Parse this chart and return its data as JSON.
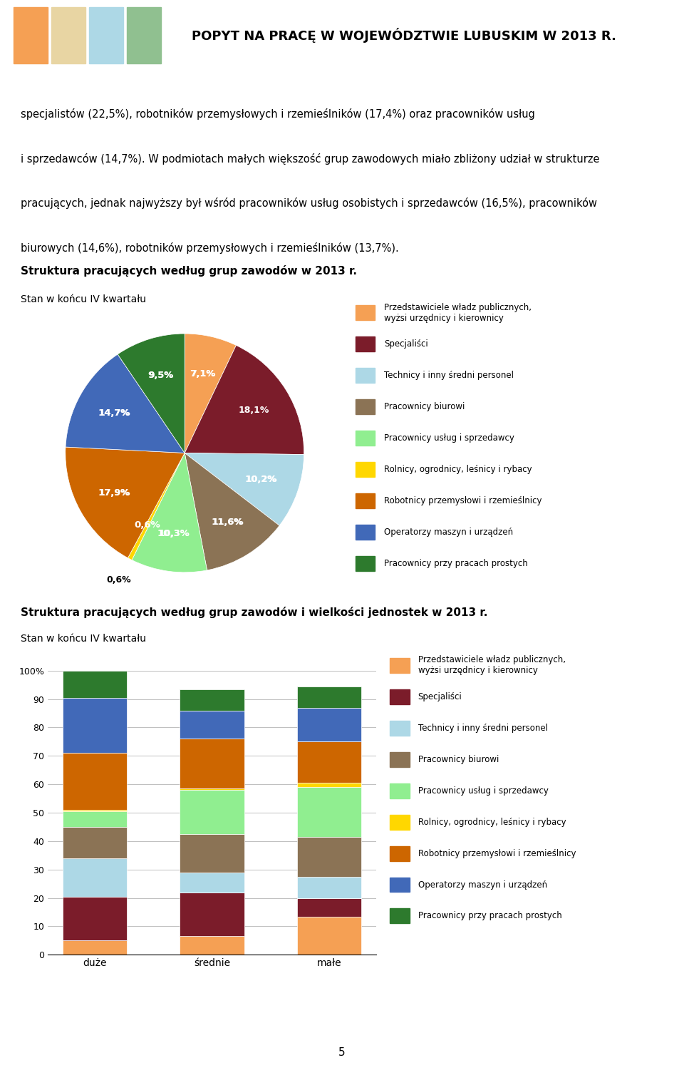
{
  "page_title": "POPYT NA PRACĘ W WOJEWÓDZTWIE LUBUSKIM W 2013 R.",
  "intro_text": "specjalistów (22,5%), robotników przemysłowych i rzemieślników (17,4%) oraz pracowników usług\ni sprzedawców (14,7%). W podmiotach małych większość grup zawodowych miało zbliżony udział w strukturze\npracujących, jednak najwyższy był wśród pracowników usług osobistych i sprzedawców (16,5%), pracowników\nbiurowych (14,6%), robotników przemysłowych i rzemieślników (13,7%).",
  "pie_title": "Struktura pracujących według grup zawodów w 2013 r.",
  "pie_subtitle": "Stan w końcu IV kwartału",
  "bar_title": "Struktura pracujących według grup zawodów i wielkości jednostek w 2013 r.",
  "bar_subtitle": "Stan w końcu IV kwartału",
  "categories": [
    "Przedstawiciele władz publicznych,\nwyżsi urzędnicy i kierownicy",
    "Specjaliści",
    "Technicy i inny średni personel",
    "Pracownicy biurowi",
    "Pracownicy usług i sprzedawcy",
    "Rolnicy, ogrodnicy, leśnicy i rybacy",
    "Robotnicy przemysłowi i rzemieślnicy",
    "Operatorzy maszyn i urządzeń",
    "Pracownicy przy pracach prostych"
  ],
  "colors": [
    "#F5A054",
    "#7B1C2A",
    "#ADD8E6",
    "#8B7355",
    "#90EE90",
    "#FFD700",
    "#CD6600",
    "#4169B8",
    "#2D7A2D"
  ],
  "pie_values": [
    7.1,
    18.1,
    10.2,
    11.6,
    10.3,
    0.6,
    17.9,
    14.7,
    9.5
  ],
  "pie_labels": [
    "7,1%",
    "18,1%",
    "10,2%",
    "11,6%",
    "10,3%",
    "0,6%",
    "17,9%",
    "14,7%",
    "9,5%"
  ],
  "bar_data": {
    "duże": [
      5.0,
      15.5,
      13.5,
      11.0,
      5.5,
      0.5,
      20.0,
      19.5,
      9.5
    ],
    "średnie": [
      6.5,
      15.5,
      7.0,
      13.5,
      15.5,
      0.5,
      17.5,
      10.0,
      7.5
    ],
    "małe": [
      13.5,
      6.5,
      7.5,
      14.0,
      17.5,
      1.5,
      14.5,
      12.0,
      7.5
    ]
  },
  "bar_categories": [
    "duże",
    "średnie",
    "małe"
  ],
  "footer_number": "5"
}
